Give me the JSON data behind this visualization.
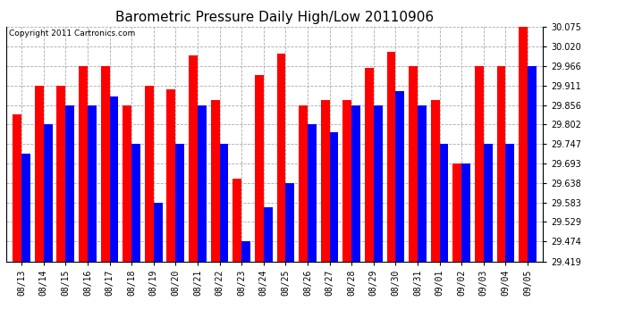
{
  "title": "Barometric Pressure Daily High/Low 20110906",
  "copyright": "Copyright 2011 Cartronics.com",
  "dates": [
    "08/13",
    "08/14",
    "08/15",
    "08/16",
    "08/17",
    "08/18",
    "08/19",
    "08/20",
    "08/21",
    "08/22",
    "08/23",
    "08/24",
    "08/25",
    "08/26",
    "08/27",
    "08/28",
    "08/29",
    "08/30",
    "08/31",
    "09/01",
    "09/02",
    "09/03",
    "09/04",
    "09/05"
  ],
  "highs": [
    29.83,
    29.911,
    29.911,
    29.966,
    29.966,
    29.856,
    29.911,
    29.9,
    29.995,
    29.87,
    29.65,
    29.94,
    30.0,
    29.856,
    29.87,
    29.87,
    29.96,
    30.005,
    29.966,
    29.87,
    29.693,
    29.966,
    29.966,
    30.075
  ],
  "lows": [
    29.72,
    29.802,
    29.856,
    29.856,
    29.88,
    29.747,
    29.583,
    29.747,
    29.856,
    29.747,
    29.474,
    29.57,
    29.638,
    29.802,
    29.78,
    29.856,
    29.856,
    29.895,
    29.856,
    29.747,
    29.693,
    29.747,
    29.747,
    29.966
  ],
  "bar_color_high": "#ff0000",
  "bar_color_low": "#0000ff",
  "bg_color": "#ffffff",
  "plot_bg_color": "#ffffff",
  "grid_color": "#aaaaaa",
  "ymin": 29.419,
  "ymax": 30.075,
  "yticks": [
    29.419,
    29.474,
    29.529,
    29.583,
    29.638,
    29.693,
    29.747,
    29.802,
    29.856,
    29.911,
    29.966,
    30.02,
    30.075
  ],
  "title_fontsize": 11,
  "tick_fontsize": 7,
  "copyright_fontsize": 6.5
}
